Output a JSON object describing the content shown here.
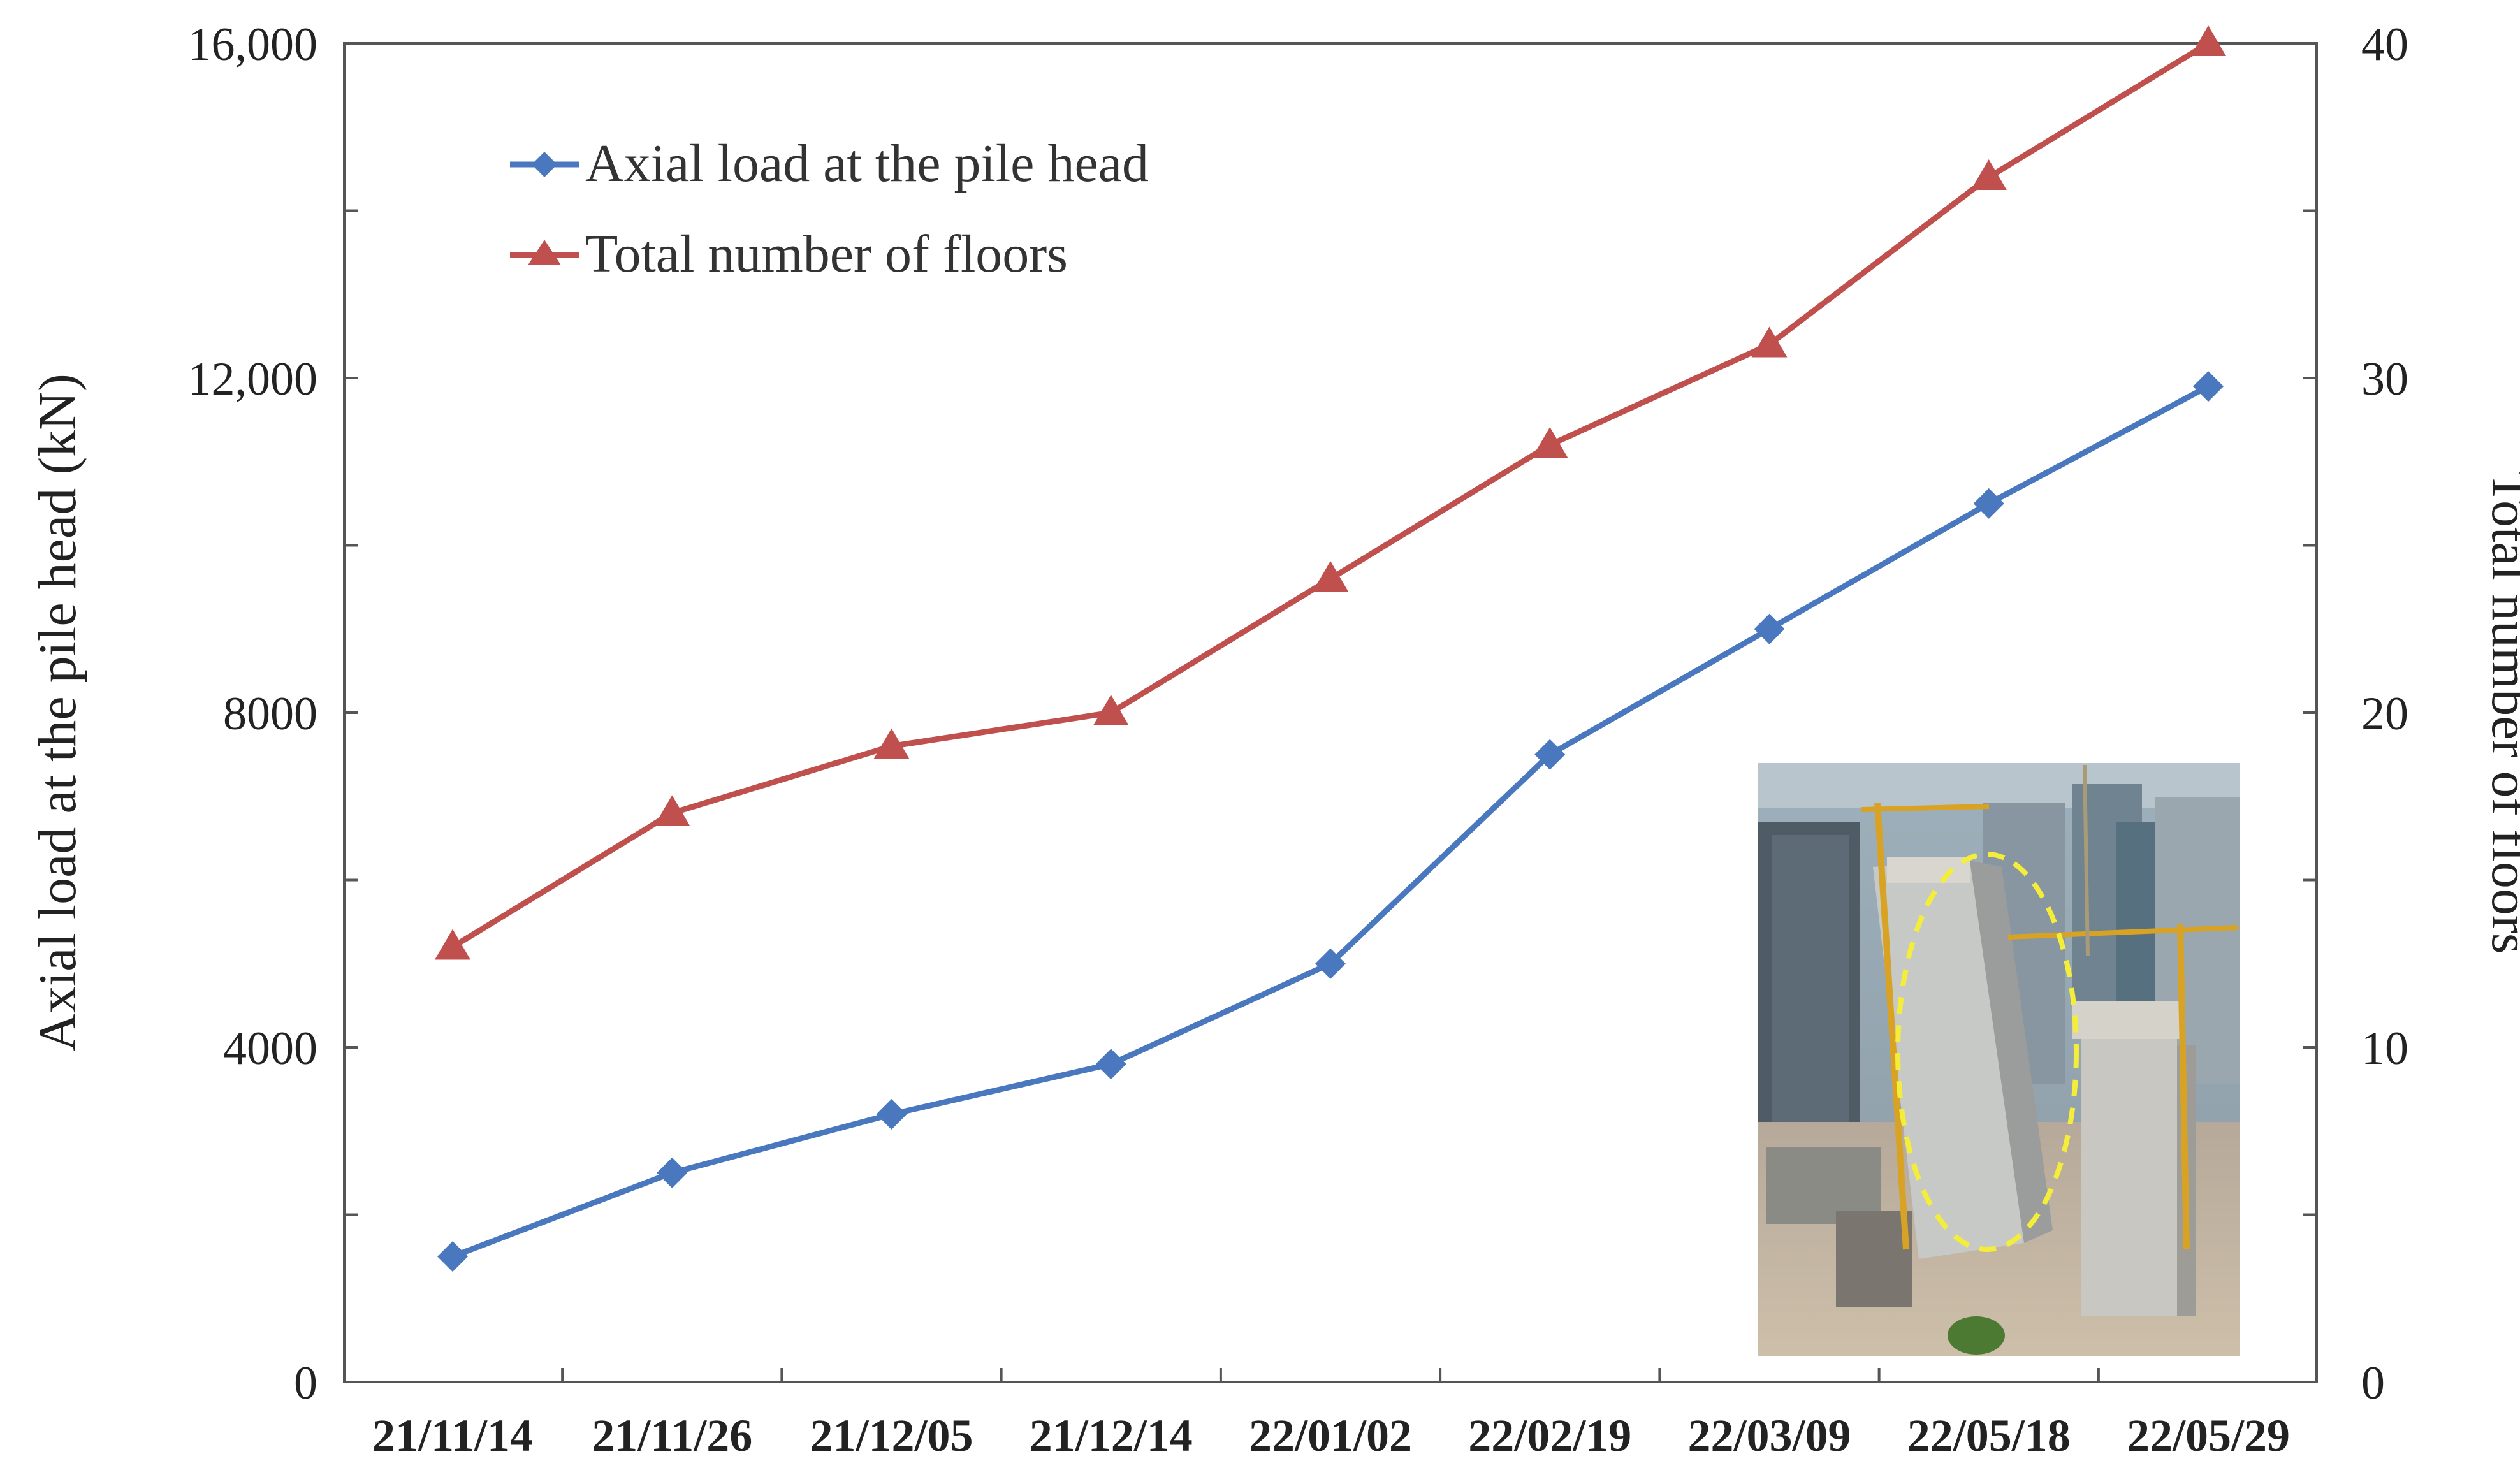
{
  "chart_data": {
    "type": "line",
    "categories": [
      "21/11/14",
      "21/11/26",
      "21/12/05",
      "21/12/14",
      "22/01/02",
      "22/02/19",
      "22/03/09",
      "22/05/18",
      "22/05/29"
    ],
    "series": [
      {
        "name": "Axial load at the pile head",
        "axis": "left",
        "marker": "diamond",
        "color": "#4a78bf",
        "values": [
          1500,
          2500,
          3200,
          3800,
          5000,
          7500,
          9000,
          10500,
          11900
        ]
      },
      {
        "name": "Total number of floors",
        "axis": "right",
        "marker": "triangle",
        "color": "#c0504d",
        "values": [
          13,
          17,
          19,
          20,
          24,
          28,
          31,
          36,
          40
        ]
      }
    ],
    "ylabel": "Axial load at the pile head (kN)",
    "y2label": "Total number of floors",
    "ylim": [
      0,
      16000
    ],
    "y2lim": [
      0,
      40
    ],
    "yticks": [
      "0",
      "4000",
      "8000",
      "12,000",
      "16,000"
    ],
    "y2ticks": [
      "0",
      "10",
      "20",
      "30",
      "40"
    ],
    "grid": false,
    "legend_position": "top-left",
    "inset": "photo of building under construction, lower-right"
  }
}
